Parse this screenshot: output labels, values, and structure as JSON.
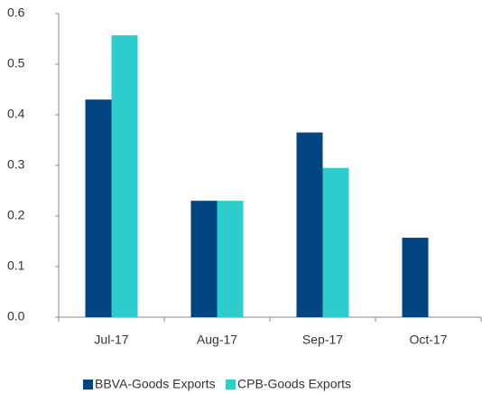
{
  "chart_data": {
    "type": "bar",
    "categories": [
      "Jul-17",
      "Aug-17",
      "Sep-17",
      "Oct-17"
    ],
    "series": [
      {
        "name": "BBVA-Goods Exports",
        "color": "#004481",
        "values": [
          0.43,
          0.23,
          0.365,
          0.157
        ]
      },
      {
        "name": "CPB-Goods Exports",
        "color": "#2dcccd",
        "values": [
          0.557,
          0.23,
          0.295,
          null
        ]
      }
    ],
    "ylim": [
      0,
      0.6
    ],
    "yticks": [
      {
        "value": 0,
        "label": "0.0"
      },
      0.1,
      0.2,
      0.3,
      0.4,
      0.5,
      0.6
    ],
    "grid": false,
    "legend": "bottom"
  }
}
